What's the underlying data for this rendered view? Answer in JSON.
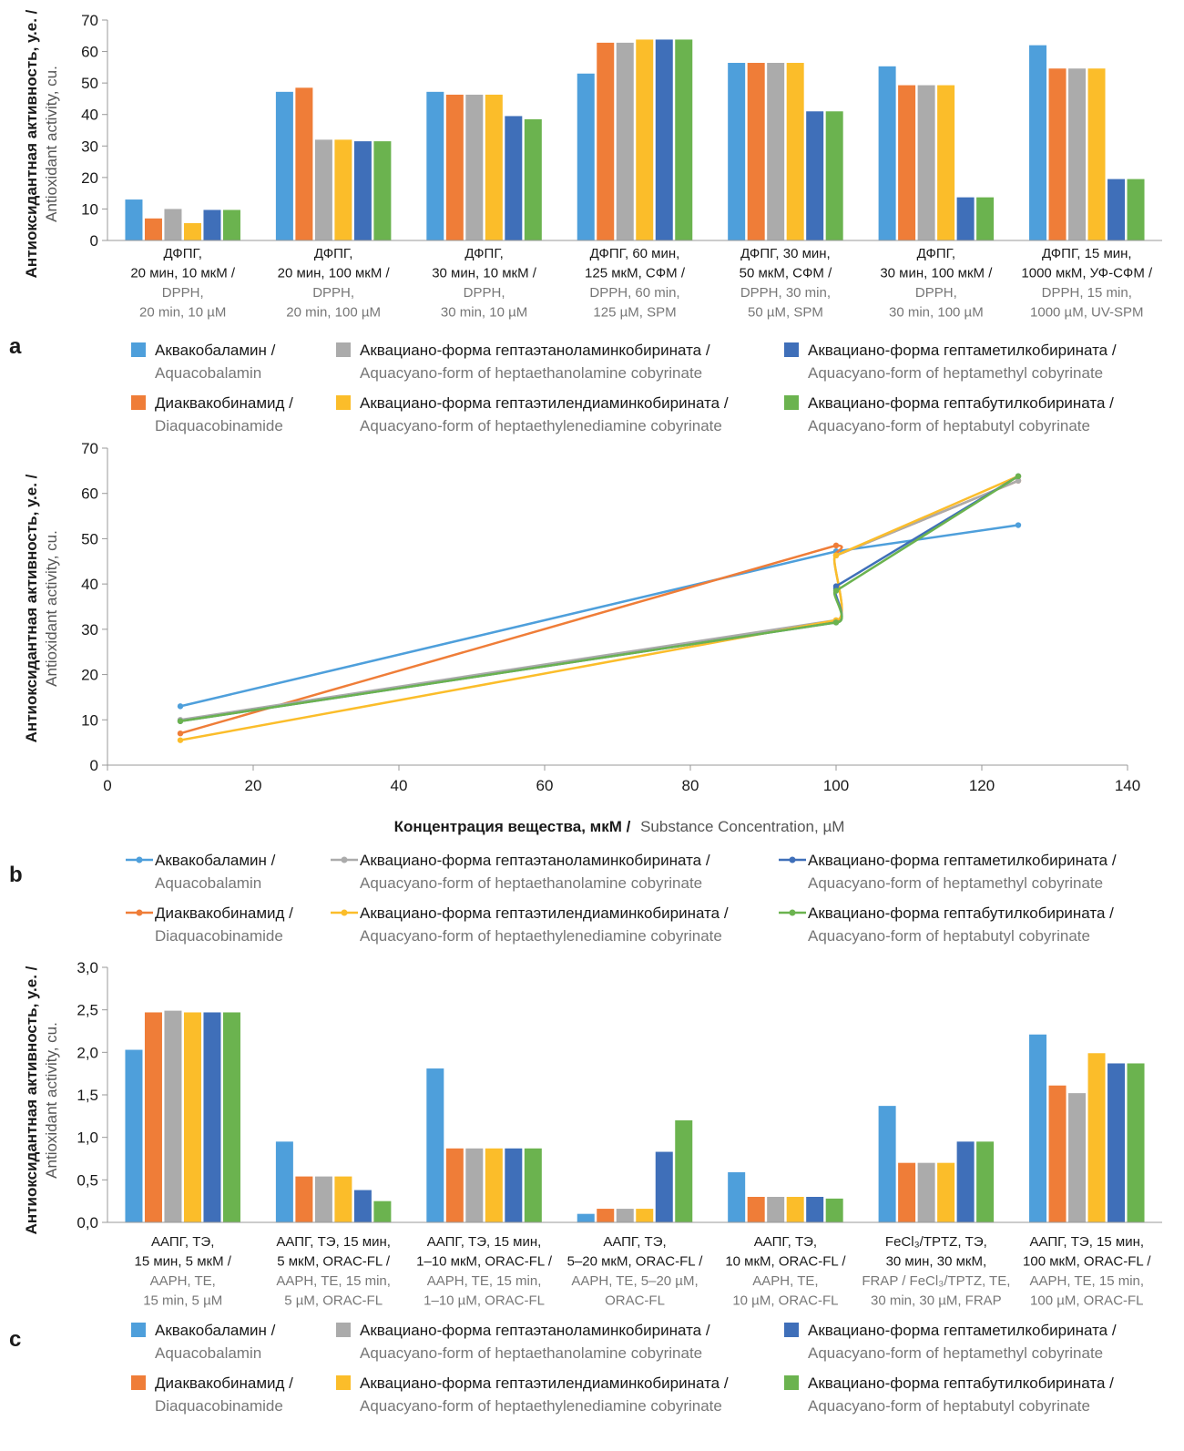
{
  "legend": {
    "items": [
      {
        "ru": "Аквакобаламин /",
        "en": "Aquacobalamin"
      },
      {
        "ru": "Диаквакобинамид /",
        "en": "Diaquacobinamide"
      },
      {
        "ru": "Аквациано-форма гептаэтаноламинкобирината /",
        "en": "Aquacyano-form of heptaethanolamine cobyrinate"
      },
      {
        "ru": "Аквациано-форма гептаэтилендиаминкобирината /",
        "en": "Aquacyano-form of heptaethylenediamine cobyrinate"
      },
      {
        "ru": "Аквациано-форма гептаметилкобирината /",
        "en": "Aquacyano-form of heptamethyl cobyrinate"
      },
      {
        "ru": "Аквациано-форма гептабутилкобирината /",
        "en": "Aquacyano-form of heptabutyl cobyrinate"
      }
    ]
  },
  "colors": [
    "#4e9fdb",
    "#ef7d38",
    "#ababab",
    "#fbbd2a",
    "#3f6fb9",
    "#6bb34f"
  ],
  "chart_data": [
    {
      "panel": "a",
      "type": "bar",
      "ylabel_ru": "Антиоксидантная активность, у.е. /",
      "ylabel_en": "Antioxidant activity, cu.",
      "ylim": [
        0,
        70
      ],
      "yticks": [
        "0",
        "10",
        "20",
        "30",
        "40",
        "50",
        "60",
        "70"
      ],
      "categories": [
        {
          "ru": [
            "ДФПГ,",
            "20 мин, 10 мкМ /"
          ],
          "en": [
            "DPPH,",
            "20 min, 10 µM"
          ]
        },
        {
          "ru": [
            "ДФПГ,",
            "20 мин, 100 мкМ /"
          ],
          "en": [
            "DPPH,",
            "20 min, 100 µM"
          ]
        },
        {
          "ru": [
            "ДФПГ,",
            "30 мин, 10 мкМ /"
          ],
          "en": [
            "DPPH,",
            "30 min, 10 µM"
          ]
        },
        {
          "ru": [
            "ДФПГ, 60 мин,",
            "125 мкМ, СФМ /"
          ],
          "en": [
            "DPPH, 60 min,",
            "125 µM, SPM"
          ]
        },
        {
          "ru": [
            "ДФПГ, 30 мин,",
            "50 мкМ, СФМ /"
          ],
          "en": [
            "DPPH, 30 min,",
            "50 µM, SPM"
          ]
        },
        {
          "ru": [
            "ДФПГ,",
            "30 мин, 100 мкМ /"
          ],
          "en": [
            "DPPH,",
            "30 min, 100 µM"
          ]
        },
        {
          "ru": [
            "ДФПГ, 15 мин,",
            "1000 мкМ, УФ-СФМ /"
          ],
          "en": [
            "DPPH, 15 min,",
            "1000 µM, UV-SPM"
          ]
        }
      ],
      "series": [
        {
          "values": [
            13.0,
            47.2,
            47.2,
            53.0,
            56.4,
            55.3,
            62.0
          ]
        },
        {
          "values": [
            7.0,
            48.5,
            46.3,
            62.8,
            56.4,
            49.3,
            54.6
          ]
        },
        {
          "values": [
            10.0,
            32.0,
            46.3,
            62.8,
            56.4,
            49.3,
            54.6
          ]
        },
        {
          "values": [
            5.5,
            32.0,
            46.3,
            63.8,
            56.4,
            49.3,
            54.6
          ]
        },
        {
          "values": [
            9.7,
            31.5,
            39.5,
            63.8,
            41.0,
            13.7,
            19.5
          ]
        },
        {
          "values": [
            9.7,
            31.5,
            38.5,
            63.8,
            41.0,
            13.7,
            19.5
          ]
        }
      ]
    },
    {
      "panel": "b",
      "type": "line",
      "ylabel_ru": "Антиоксидантная активность, у.е. /",
      "ylabel_en": "Antioxidant activity, cu.",
      "xlabel_ru": "Концентрация вещества, мкМ /",
      "xlabel_en": "Substance Concentration, µM",
      "xlim": [
        0,
        140
      ],
      "ylim": [
        0,
        70
      ],
      "xticks": [
        "0",
        "20",
        "40",
        "60",
        "80",
        "100",
        "120",
        "140"
      ],
      "yticks": [
        "0",
        "10",
        "20",
        "30",
        "40",
        "50",
        "60",
        "70"
      ],
      "series": [
        {
          "x": [
            10,
            100,
            100,
            125
          ],
          "y": [
            13.0,
            47.2,
            47.2,
            53.0
          ]
        },
        {
          "x": [
            10,
            100,
            100,
            125
          ],
          "y": [
            7.0,
            48.5,
            46.3,
            62.8
          ]
        },
        {
          "x": [
            10,
            100,
            100,
            125
          ],
          "y": [
            10.0,
            32.0,
            46.3,
            62.8
          ]
        },
        {
          "x": [
            10,
            100,
            100,
            125
          ],
          "y": [
            5.5,
            32.0,
            46.3,
            63.8
          ]
        },
        {
          "x": [
            10,
            100,
            100,
            125
          ],
          "y": [
            9.7,
            31.5,
            39.5,
            63.8
          ]
        },
        {
          "x": [
            10,
            100,
            100,
            125
          ],
          "y": [
            9.7,
            31.5,
            38.5,
            63.8
          ]
        }
      ]
    },
    {
      "panel": "c",
      "type": "bar",
      "ylabel_ru": "Антиоксидантная активность, у.е. /",
      "ylabel_en": "Antioxidant activity, cu.",
      "ylim": [
        0,
        3
      ],
      "yticks": [
        "0,0",
        "0,5",
        "1,0",
        "1,5",
        "2,0",
        "2,5",
        "3,0"
      ],
      "categories": [
        {
          "ru": [
            "ААПГ, ТЭ,",
            "15 мин, 5 мкМ /"
          ],
          "en": [
            "AAPH, TE,",
            "15 min, 5 µM"
          ]
        },
        {
          "ru": [
            "ААПГ, ТЭ, 15 мин,",
            "5 мкМ, ORAC-FL /"
          ],
          "en": [
            "AAPH, TE, 15 min,",
            "5 µM, ORAC-FL"
          ]
        },
        {
          "ru": [
            "ААПГ, ТЭ, 15 мин,",
            "1–10 мкМ, ORAC-FL /"
          ],
          "en": [
            "AAPH, TE, 15 min,",
            "1–10 µM, ORAC-FL"
          ]
        },
        {
          "ru": [
            "ААПГ, ТЭ,",
            "5–20 мкМ, ORAC-FL /"
          ],
          "en": [
            "AAPH, TE, 5–20 µM,",
            "ORAC-FL"
          ]
        },
        {
          "ru": [
            "ААПГ, ТЭ,",
            "10 мкМ, ORAC-FL /"
          ],
          "en": [
            "AAPH, TE,",
            "10 µM, ORAC-FL"
          ]
        },
        {
          "ru": [
            "FeCl₃/TPTZ, ТЭ,",
            "30 мин, 30 мкМ,"
          ],
          "en": [
            "FRAP / FeCl₃/TPTZ, TE,",
            "30 min, 30 µM, FRAP"
          ]
        },
        {
          "ru": [
            "ААПГ, ТЭ, 15 мин,",
            "100 мкМ, ORAC-FL /"
          ],
          "en": [
            "AAPH, TE, 15 min,",
            "100 µM, ORAC-FL"
          ]
        }
      ],
      "series": [
        {
          "values": [
            2.03,
            0.95,
            1.81,
            0.1,
            0.59,
            1.37,
            2.21
          ]
        },
        {
          "values": [
            2.47,
            0.54,
            0.87,
            0.16,
            0.3,
            0.7,
            1.61
          ]
        },
        {
          "values": [
            2.49,
            0.54,
            0.87,
            0.16,
            0.3,
            0.7,
            1.52
          ]
        },
        {
          "values": [
            2.47,
            0.54,
            0.87,
            0.16,
            0.3,
            0.7,
            1.99
          ]
        },
        {
          "values": [
            2.47,
            0.38,
            0.87,
            0.83,
            0.3,
            0.95,
            1.87
          ]
        },
        {
          "values": [
            2.47,
            0.25,
            0.87,
            1.2,
            0.28,
            0.95,
            1.87
          ]
        }
      ]
    }
  ]
}
